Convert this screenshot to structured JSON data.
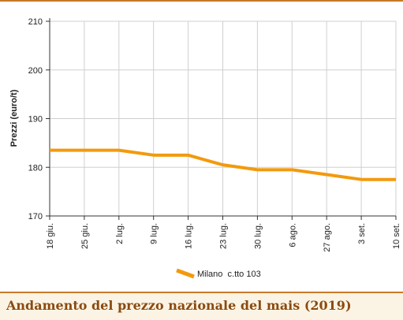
{
  "footer": {
    "title": "Andamento del prezzo nazionale del mais (2019)"
  },
  "colors": {
    "series": "#f29a0e",
    "grid": "#cfcfcf",
    "accent": "#c8792a",
    "footer_text": "#8a4a12",
    "footer_bg": "#fbf4e4"
  },
  "chart_data": {
    "type": "line",
    "title": "",
    "xlabel": "",
    "ylabel": "Prezzi (euro/t)",
    "ylim": [
      170,
      210
    ],
    "yticks": [
      170,
      180,
      190,
      200,
      210
    ],
    "categories": [
      "18 giu.",
      "25 giu.",
      "2 lug.",
      "9 lug.",
      "16 lug.",
      "23 lug.",
      "30 lug.",
      "6 ago.",
      "27 ago.",
      "3 set.",
      "10 set."
    ],
    "grid": true,
    "legend_position": "bottom",
    "series": [
      {
        "name": "Milano  c.tto 103",
        "values": [
          183.5,
          183.5,
          183.5,
          182.5,
          182.5,
          180.5,
          179.5,
          179.5,
          178.5,
          177.5,
          177.5
        ]
      }
    ]
  }
}
